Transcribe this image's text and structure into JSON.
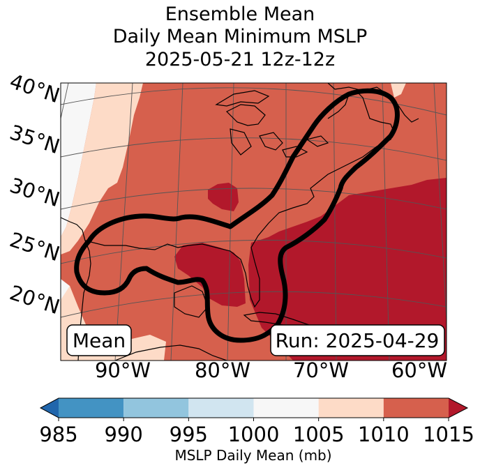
{
  "title": {
    "line1": "Ensemble Mean",
    "line2": "Daily Mean Minimum MSLP",
    "line3": "2025-05-21 12z-12z"
  },
  "map": {
    "lat_labels": [
      "40°N",
      "35°N",
      "30°N",
      "25°N",
      "20°N"
    ],
    "lon_labels": [
      "90°W",
      "80°W",
      "70°W",
      "60°W"
    ],
    "mean_box": "Mean",
    "run_box": "Run: 2025-04-29",
    "fill_categories": [
      {
        "range": "1000-1005",
        "color": "#f7f7f7"
      },
      {
        "range": "1005-1010",
        "color": "#fddbc7"
      },
      {
        "range": "1010-1015",
        "color": "#d6604d"
      },
      {
        "range": ">1015",
        "color": "#b2182b"
      }
    ],
    "contour_color": "#000000"
  },
  "chart_data": {
    "type": "heatmap",
    "title": "Ensemble Mean Daily Mean Minimum MSLP 2025-05-21 12z-12z",
    "colorbar": {
      "label": "MSLP Daily Mean (mb)",
      "ticks": [
        985,
        990,
        995,
        1000,
        1005,
        1010,
        1015
      ],
      "range": [
        985,
        1015
      ],
      "extend": "both",
      "colors": [
        "#2166ac",
        "#4393c3",
        "#92c5de",
        "#d1e5f0",
        "#f7f7f7",
        "#fddbc7",
        "#d6604d",
        "#b2182b"
      ]
    },
    "lat_range": [
      17,
      41
    ],
    "lon_range": [
      -97,
      -60
    ]
  }
}
